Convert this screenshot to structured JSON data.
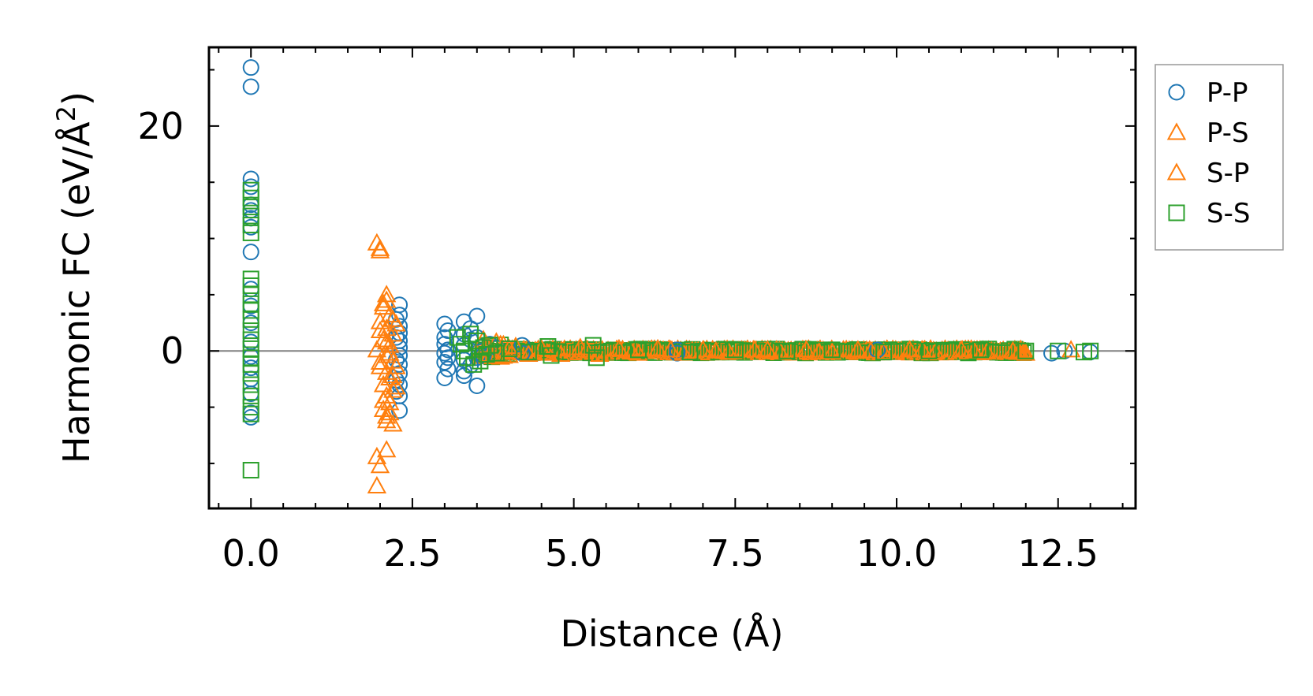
{
  "chart_data": {
    "type": "scatter",
    "title": "",
    "xlabel": "Distance (Å)",
    "ylabel_main": "Harmonic FC (eV/Å",
    "ylabel_sup": "2",
    "ylabel_close": ")",
    "xlim": [
      -0.65,
      13.7
    ],
    "ylim": [
      -14,
      27
    ],
    "xticks": [
      0.0,
      2.5,
      5.0,
      7.5,
      10.0,
      12.5
    ],
    "xtick_labels": [
      "0.0",
      "2.5",
      "5.0",
      "7.5",
      "10.0",
      "12.5"
    ],
    "yticks": [
      0,
      20
    ],
    "ytick_labels": [
      "0",
      "20"
    ],
    "grid": false,
    "reference_line_y": 0,
    "legend_position": "outside-right",
    "series": [
      {
        "name": "P-P",
        "marker": "circle",
        "color": "#1f77b4",
        "points": [
          [
            0,
            25.2
          ],
          [
            0,
            23.5
          ],
          [
            0,
            15.3
          ],
          [
            0,
            14.6
          ],
          [
            0,
            13.0
          ],
          [
            0,
            12.5
          ],
          [
            0,
            11.8
          ],
          [
            0,
            11.0
          ],
          [
            0,
            8.8
          ],
          [
            0,
            5.5
          ],
          [
            0,
            4.0
          ],
          [
            0,
            2.5
          ],
          [
            0,
            0.8
          ],
          [
            0,
            -0.5
          ],
          [
            0,
            -1.5
          ],
          [
            0,
            -2.5
          ],
          [
            0,
            -3.8
          ],
          [
            0,
            -5.5
          ],
          [
            0,
            -5.9
          ],
          [
            2.3,
            4.1
          ],
          [
            2.3,
            3.2
          ],
          [
            2.3,
            2.2
          ],
          [
            2.3,
            1.6
          ],
          [
            2.3,
            0.9
          ],
          [
            2.3,
            0.3
          ],
          [
            2.3,
            -0.4
          ],
          [
            2.3,
            -1.2
          ],
          [
            2.3,
            -2.0
          ],
          [
            2.3,
            -3.0
          ],
          [
            2.3,
            -4.0
          ],
          [
            2.3,
            -5.3
          ],
          [
            2.25,
            2.8
          ],
          [
            2.25,
            1.2
          ],
          [
            2.25,
            -0.8
          ],
          [
            2.25,
            -2.6
          ],
          [
            2.25,
            -3.6
          ],
          [
            3.0,
            2.4
          ],
          [
            3.0,
            1.2
          ],
          [
            3.0,
            0.6
          ],
          [
            3.0,
            -0.2
          ],
          [
            3.0,
            -1.0
          ],
          [
            3.0,
            -2.4
          ],
          [
            3.05,
            1.8
          ],
          [
            3.05,
            0.1
          ],
          [
            3.05,
            -0.6
          ],
          [
            3.05,
            -1.6
          ],
          [
            3.3,
            2.6
          ],
          [
            3.3,
            1.5
          ],
          [
            3.3,
            0.5
          ],
          [
            3.3,
            -0.8
          ],
          [
            3.3,
            -1.8
          ],
          [
            3.3,
            -2.2
          ],
          [
            3.4,
            2.0
          ],
          [
            3.4,
            1.0
          ],
          [
            3.4,
            -1.3
          ],
          [
            3.5,
            3.1
          ],
          [
            3.5,
            1.2
          ],
          [
            3.5,
            -0.6
          ],
          [
            3.5,
            -3.1
          ],
          [
            3.6,
            0.4
          ],
          [
            3.6,
            -0.4
          ],
          [
            3.7,
            0.6
          ],
          [
            3.8,
            0.3
          ],
          [
            4.2,
            0.5
          ],
          [
            4.2,
            -0.2
          ],
          [
            6.6,
            -0.2
          ],
          [
            6.6,
            0.1
          ],
          [
            9.7,
            0.1
          ],
          [
            12.4,
            -0.2
          ],
          [
            12.6,
            0.0
          ],
          [
            13.0,
            -0.1
          ]
        ]
      },
      {
        "name": "P-S",
        "marker": "triangle",
        "color": "#ff7f0e",
        "points": [
          [
            1.95,
            9.6
          ],
          [
            2.0,
            9.1
          ],
          [
            2.1,
            5.0
          ],
          [
            2.1,
            4.5
          ],
          [
            2.05,
            3.9
          ],
          [
            2.15,
            3.2
          ],
          [
            2.0,
            2.6
          ],
          [
            2.1,
            2.0
          ],
          [
            2.2,
            1.5
          ],
          [
            2.05,
            1.0
          ],
          [
            2.15,
            0.5
          ],
          [
            1.95,
            0.1
          ],
          [
            2.1,
            -0.4
          ],
          [
            2.2,
            -0.9
          ],
          [
            2.0,
            -1.4
          ],
          [
            2.1,
            -1.9
          ],
          [
            2.15,
            -2.4
          ],
          [
            2.05,
            -3.0
          ],
          [
            2.2,
            -3.5
          ],
          [
            2.1,
            -4.0
          ],
          [
            2.15,
            -4.6
          ],
          [
            2.05,
            -5.2
          ],
          [
            2.1,
            -5.8
          ],
          [
            2.2,
            -6.5
          ],
          [
            2.1,
            -8.8
          ],
          [
            1.95,
            -9.4
          ],
          [
            2.0,
            -10.2
          ],
          [
            1.95,
            -12.0
          ],
          [
            2.25,
            2.4
          ],
          [
            2.25,
            -1.4
          ],
          [
            2.25,
            -3.2
          ],
          [
            3.6,
            1.0
          ],
          [
            3.7,
            -0.3
          ],
          [
            3.8,
            0.8
          ],
          [
            3.9,
            -0.4
          ],
          [
            4.0,
            0.2
          ],
          [
            4.3,
            -0.3
          ],
          [
            4.5,
            0.2
          ],
          [
            4.8,
            -0.3
          ],
          [
            5.1,
            0.3
          ],
          [
            5.4,
            -0.3
          ],
          [
            5.7,
            0.2
          ],
          [
            6.0,
            -0.2
          ],
          [
            6.3,
            0.2
          ],
          [
            6.7,
            -0.2
          ],
          [
            7.0,
            0.1
          ],
          [
            7.4,
            -0.1
          ],
          [
            7.8,
            0.1
          ],
          [
            8.2,
            -0.1
          ],
          [
            8.6,
            0.1
          ],
          [
            9.0,
            -0.1
          ],
          [
            9.4,
            0.1
          ],
          [
            9.8,
            -0.1
          ],
          [
            10.2,
            0.1
          ],
          [
            10.6,
            -0.1
          ],
          [
            11.0,
            0.1
          ],
          [
            11.4,
            -0.1
          ],
          [
            11.8,
            0.0
          ],
          [
            12.0,
            -0.2
          ],
          [
            12.7,
            0.1
          ]
        ]
      },
      {
        "name": "S-P",
        "marker": "triangle",
        "color": "#ff7f0e",
        "points": [
          [
            2.0,
            8.9
          ],
          [
            2.05,
            4.2
          ],
          [
            2.2,
            2.8
          ],
          [
            2.0,
            1.8
          ],
          [
            2.1,
            0.8
          ],
          [
            2.15,
            -0.2
          ],
          [
            2.0,
            -1.0
          ],
          [
            2.2,
            -2.2
          ],
          [
            2.05,
            -4.4
          ],
          [
            2.15,
            -5.5
          ],
          [
            2.1,
            -6.2
          ],
          [
            3.65,
            0.5
          ],
          [
            3.75,
            -0.5
          ],
          [
            4.1,
            0.4
          ],
          [
            4.6,
            -0.2
          ],
          [
            5.2,
            0.1
          ],
          [
            5.9,
            -0.1
          ],
          [
            6.5,
            0.1
          ],
          [
            7.2,
            0.0
          ],
          [
            8.0,
            0.1
          ],
          [
            8.8,
            -0.1
          ],
          [
            9.6,
            0.0
          ],
          [
            10.4,
            0.1
          ],
          [
            11.2,
            0.0
          ],
          [
            11.9,
            -0.1
          ]
        ]
      },
      {
        "name": "S-S",
        "marker": "square",
        "color": "#2ca02c",
        "points": [
          [
            0,
            14.3
          ],
          [
            0,
            13.6
          ],
          [
            0,
            12.8
          ],
          [
            0,
            12.0
          ],
          [
            0,
            11.2
          ],
          [
            0,
            10.5
          ],
          [
            0,
            6.4
          ],
          [
            0,
            5.8
          ],
          [
            0,
            5.0
          ],
          [
            0,
            4.2
          ],
          [
            0,
            3.6
          ],
          [
            0,
            2.8
          ],
          [
            0,
            1.8
          ],
          [
            0,
            1.0
          ],
          [
            0,
            0.2
          ],
          [
            0,
            -0.6
          ],
          [
            0,
            -1.2
          ],
          [
            0,
            -2.0
          ],
          [
            0,
            -3.0
          ],
          [
            0,
            -4.0
          ],
          [
            0,
            -5.0
          ],
          [
            0,
            -5.6
          ],
          [
            0,
            -10.6
          ],
          [
            3.2,
            1.2
          ],
          [
            3.25,
            0.6
          ],
          [
            3.3,
            0.0
          ],
          [
            3.35,
            -0.6
          ],
          [
            3.4,
            1.5
          ],
          [
            3.45,
            -1.2
          ],
          [
            3.5,
            0.9
          ],
          [
            3.55,
            -0.9
          ],
          [
            3.6,
            0.3
          ],
          [
            3.65,
            -0.3
          ],
          [
            3.7,
            0.5
          ],
          [
            3.8,
            -0.2
          ],
          [
            4.0,
            0.2
          ],
          [
            4.3,
            -0.1
          ],
          [
            4.6,
            0.4
          ],
          [
            4.65,
            -0.4
          ],
          [
            5.3,
            0.5
          ],
          [
            5.35,
            -0.6
          ],
          [
            6.0,
            0.1
          ],
          [
            6.8,
            -0.1
          ],
          [
            7.5,
            0.1
          ],
          [
            8.3,
            0.0
          ],
          [
            9.0,
            0.1
          ],
          [
            9.8,
            -0.1
          ],
          [
            10.5,
            0.0
          ],
          [
            11.3,
            0.1
          ],
          [
            12.0,
            0.0
          ],
          [
            12.5,
            0.0
          ],
          [
            12.9,
            -0.1
          ],
          [
            13.0,
            0.0
          ]
        ]
      }
    ],
    "dense_band": {
      "description": "dense overlapping markers near y=0",
      "x_start": 3.55,
      "x_end": 12.0,
      "spread": 0.35
    }
  }
}
